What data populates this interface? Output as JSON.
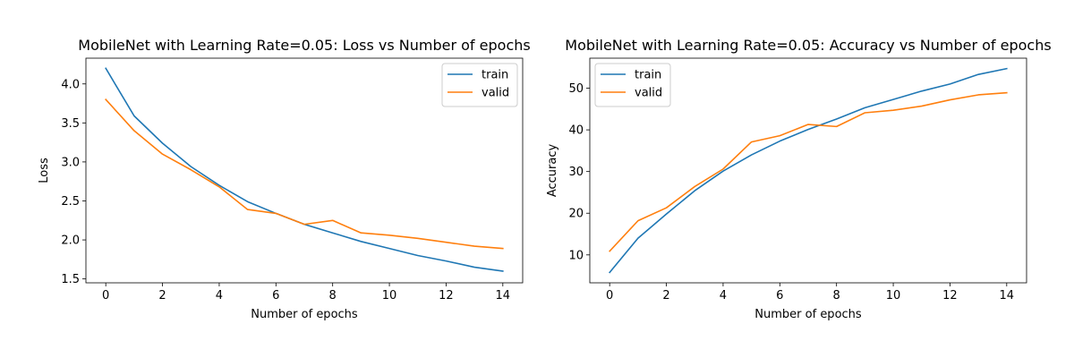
{
  "chart_data": [
    {
      "type": "line",
      "title": "MobileNet with Learning Rate=0.05: Loss vs Number of epochs",
      "xlabel": "Number of epochs",
      "ylabel": "Loss",
      "x": [
        0,
        1,
        2,
        3,
        4,
        5,
        6,
        7,
        8,
        9,
        10,
        11,
        12,
        13,
        14
      ],
      "xlim": [
        -0.7,
        14.7
      ],
      "ylim": [
        1.45,
        4.33
      ],
      "xticks": [
        0,
        2,
        4,
        6,
        8,
        10,
        12,
        14
      ],
      "yticks": [
        1.5,
        2.0,
        2.5,
        3.0,
        3.5,
        4.0
      ],
      "ytick_labels": [
        "1.5",
        "2.0",
        "2.5",
        "3.0",
        "3.5",
        "4.0"
      ],
      "legend_position": "top-right",
      "grid": false,
      "series": [
        {
          "name": "train",
          "color": "#1f77b4",
          "values": [
            4.2,
            3.59,
            3.24,
            2.94,
            2.7,
            2.49,
            2.34,
            2.2,
            2.09,
            1.98,
            1.89,
            1.8,
            1.73,
            1.65,
            1.6
          ]
        },
        {
          "name": "valid",
          "color": "#ff7f0e",
          "values": [
            3.8,
            3.4,
            3.1,
            2.9,
            2.68,
            2.39,
            2.34,
            2.2,
            2.25,
            2.09,
            2.06,
            2.02,
            1.97,
            1.92,
            1.89
          ]
        }
      ]
    },
    {
      "type": "line",
      "title": "MobileNet with Learning Rate=0.05: Accuracy vs Number of epochs",
      "xlabel": "Number of epochs",
      "ylabel": "Accuracy",
      "x": [
        0,
        1,
        2,
        3,
        4,
        5,
        6,
        7,
        8,
        9,
        10,
        11,
        12,
        13,
        14
      ],
      "xlim": [
        -0.7,
        14.7
      ],
      "ylim": [
        3.3,
        57.2
      ],
      "xticks": [
        0,
        2,
        4,
        6,
        8,
        10,
        12,
        14
      ],
      "yticks": [
        10,
        20,
        30,
        40,
        50
      ],
      "ytick_labels": [
        "10",
        "20",
        "30",
        "40",
        "50"
      ],
      "legend_position": "top-left",
      "grid": false,
      "series": [
        {
          "name": "train",
          "color": "#1f77b4",
          "values": [
            5.8,
            14.0,
            19.8,
            25.4,
            30.1,
            34.0,
            37.3,
            40.1,
            42.6,
            45.3,
            47.3,
            49.3,
            51.0,
            53.3,
            54.7
          ]
        },
        {
          "name": "valid",
          "color": "#ff7f0e",
          "values": [
            10.9,
            18.2,
            21.3,
            26.4,
            30.6,
            37.1,
            38.6,
            41.3,
            40.8,
            44.1,
            44.7,
            45.7,
            47.2,
            48.4,
            48.9
          ]
        }
      ]
    }
  ]
}
